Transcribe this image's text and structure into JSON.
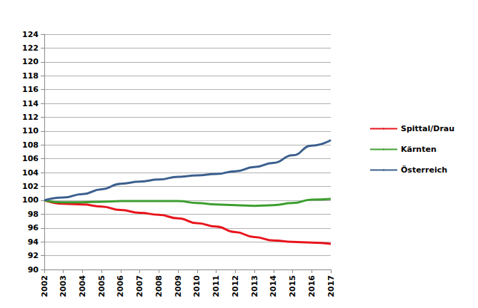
{
  "chart_data": {
    "type": "line",
    "categories": [
      "2002",
      "2003",
      "2004",
      "2005",
      "2006",
      "2007",
      "2008",
      "2009",
      "2010",
      "2011",
      "2012",
      "2013",
      "2014",
      "2015",
      "2016",
      "2017"
    ],
    "series": [
      {
        "name": "Spittal/Drau",
        "color": "#e8141c",
        "values": [
          100,
          99.5,
          99.4,
          99.1,
          98.6,
          98.2,
          97.9,
          97.4,
          96.7,
          96.2,
          95.4,
          94.7,
          94.2,
          94.0,
          93.9,
          93.7
        ]
      },
      {
        "name": "Kärnten",
        "color": "#3c9e2e",
        "values": [
          100,
          99.7,
          99.7,
          99.8,
          99.9,
          99.9,
          99.9,
          99.9,
          99.6,
          99.4,
          99.3,
          99.2,
          99.3,
          99.6,
          100.1,
          100.2
        ]
      },
      {
        "name": "Österreich",
        "color": "#3b5f8e",
        "values": [
          100,
          100.4,
          100.9,
          101.6,
          102.4,
          102.7,
          103.0,
          103.4,
          103.6,
          103.8,
          104.2,
          104.8,
          105.4,
          106.5,
          107.9,
          108.7
        ]
      }
    ],
    "ylim": [
      90,
      124
    ],
    "yticks": [
      90,
      92,
      94,
      96,
      98,
      100,
      102,
      104,
      106,
      108,
      110,
      112,
      114,
      116,
      118,
      120,
      122,
      124
    ],
    "grid": true,
    "legend": "right"
  }
}
